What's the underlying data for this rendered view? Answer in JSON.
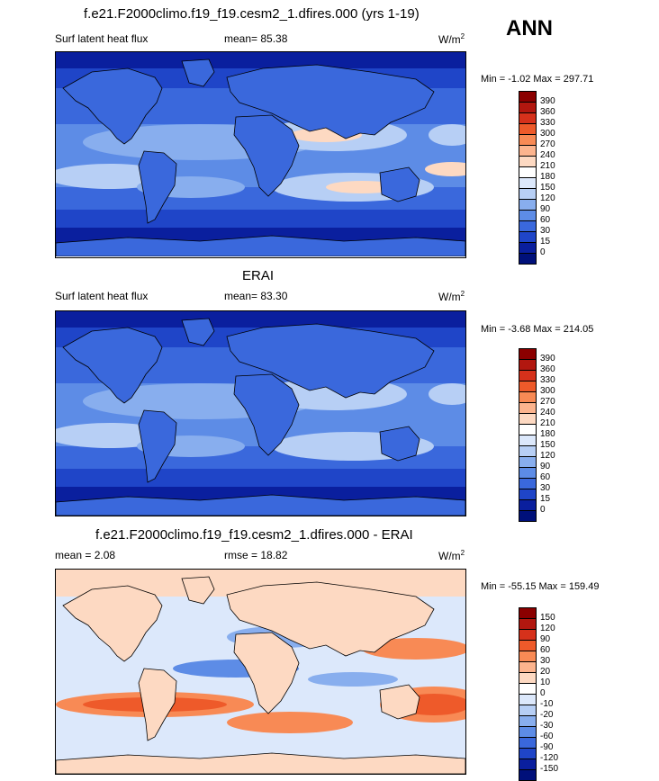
{
  "season": "ANN",
  "panels": [
    {
      "title": "f.e21.F2000climo.f19_f19.cesm2_1.dfires.000 (yrs 1-19)",
      "left_label": "Surf latent heat flux",
      "center_label": "mean=  85.38",
      "units": "W/m",
      "units_sup": "2",
      "minmax": "Min =  -1.02 Max = 297.71",
      "colorbar_labels": [
        "390",
        "360",
        "330",
        "300",
        "270",
        "240",
        "210",
        "180",
        "150",
        "120",
        "90",
        "60",
        "30",
        "15",
        "0"
      ],
      "colorbar_colors": [
        "#8b0000",
        "#b2170f",
        "#d6311b",
        "#ee5a2a",
        "#f88a55",
        "#fcb48e",
        "#fdd9c2",
        "#ffffff",
        "#dce8fb",
        "#b7cff5",
        "#88aeee",
        "#5d8ce6",
        "#3a68dc",
        "#1f45c8",
        "#0a1f9e",
        "#00107a"
      ]
    },
    {
      "title": "ERAI",
      "left_label": "Surf latent heat flux",
      "center_label": "mean=  83.30",
      "units": "W/m",
      "units_sup": "2",
      "minmax": "Min =  -3.68 Max = 214.05",
      "colorbar_labels": [
        "390",
        "360",
        "330",
        "300",
        "270",
        "240",
        "210",
        "180",
        "150",
        "120",
        "90",
        "60",
        "30",
        "15",
        "0"
      ],
      "colorbar_colors": [
        "#8b0000",
        "#b2170f",
        "#d6311b",
        "#ee5a2a",
        "#f88a55",
        "#fcb48e",
        "#fdd9c2",
        "#ffffff",
        "#dce8fb",
        "#b7cff5",
        "#88aeee",
        "#5d8ce6",
        "#3a68dc",
        "#1f45c8",
        "#0a1f9e",
        "#00107a"
      ]
    },
    {
      "title": "f.e21.F2000climo.f19_f19.cesm2_1.dfires.000 - ERAI",
      "left_label": "mean =   2.08",
      "center_label": "rmse =  18.82",
      "units": "W/m",
      "units_sup": "2",
      "minmax": "Min = -55.15 Max = 159.49",
      "colorbar_labels": [
        "150",
        "120",
        "90",
        "60",
        "30",
        "20",
        "10",
        "0",
        "-10",
        "-20",
        "-30",
        "-60",
        "-90",
        "-120",
        "-150"
      ],
      "colorbar_colors": [
        "#8b0000",
        "#b2170f",
        "#d6311b",
        "#ee5a2a",
        "#f88a55",
        "#fcb48e",
        "#fdd9c2",
        "#ffffff",
        "#dce8fb",
        "#b7cff5",
        "#88aeee",
        "#5d8ce6",
        "#3a68dc",
        "#1f45c8",
        "#0a1f9e",
        "#00107a"
      ]
    }
  ]
}
